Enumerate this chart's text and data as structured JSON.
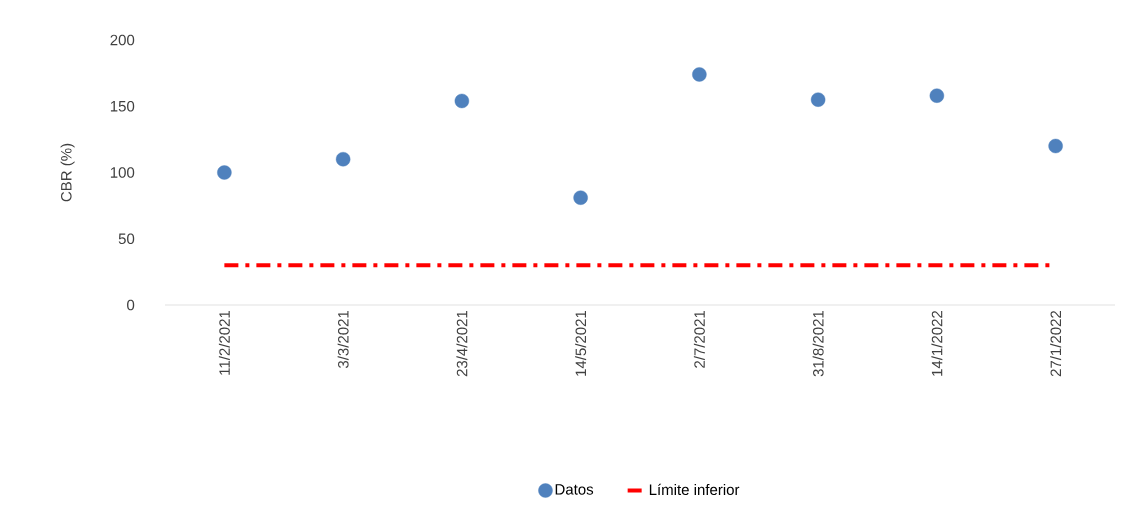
{
  "chart_data": {
    "type": "scatter",
    "ylabel": "CBR (%)",
    "categories": [
      "11/2/2021",
      "3/3/2021",
      "23/4/2021",
      "14/5/2021",
      "2/7/2021",
      "31/8/2021",
      "14/1/2022",
      "27/1/2022"
    ],
    "series": [
      {
        "name": "Datos",
        "color": "#4f81bd",
        "marker": "circle",
        "values": [
          100,
          110,
          154,
          81,
          174,
          155,
          158,
          120
        ]
      },
      {
        "name": "Límite inferior",
        "type": "line",
        "color": "#ff0000",
        "line_style": "dashdot",
        "marker": "none",
        "values": [
          30,
          30,
          30,
          30,
          30,
          30,
          30,
          30
        ]
      }
    ],
    "ylim": [
      0,
      200
    ],
    "yticks": [
      0,
      50,
      100,
      150,
      200
    ],
    "legend": "bottom"
  }
}
